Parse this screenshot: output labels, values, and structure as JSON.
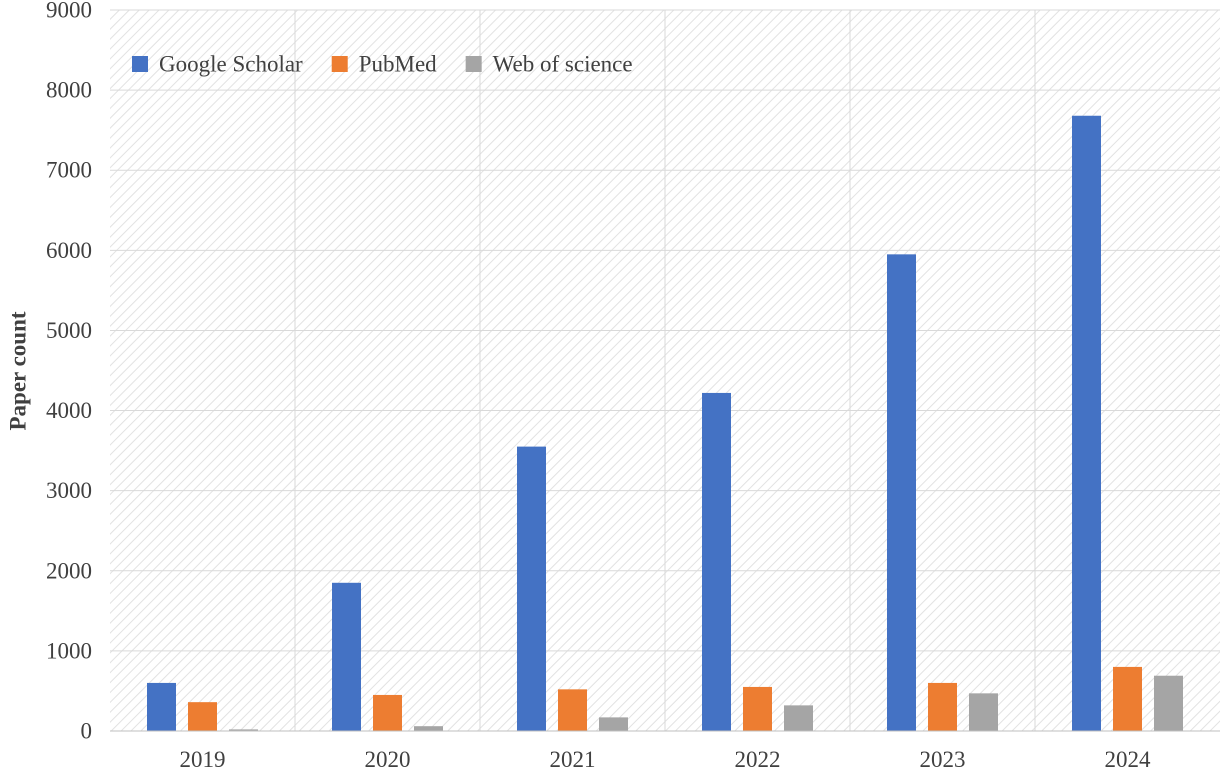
{
  "chart_data": {
    "type": "bar",
    "title": "",
    "xlabel": "",
    "ylabel": "Paper count",
    "categories": [
      "2019",
      "2020",
      "2021",
      "2022",
      "2023",
      "2024"
    ],
    "series": [
      {
        "name": "Google Scholar",
        "color": "#4472C4",
        "values": [
          600,
          1850,
          3550,
          4220,
          5950,
          7680
        ]
      },
      {
        "name": "PubMed",
        "color": "#ED7D31",
        "values": [
          360,
          450,
          520,
          550,
          600,
          800
        ]
      },
      {
        "name": "Web of science",
        "color": "#A5A5A5",
        "values": [
          20,
          60,
          170,
          320,
          470,
          690
        ]
      }
    ],
    "ylim": [
      0,
      9000
    ],
    "yticks": [
      "0",
      "1000",
      "2000",
      "3000",
      "4000",
      "5000",
      "6000",
      "7000",
      "8000",
      "9000"
    ],
    "grid": true,
    "legend_position": "top-left",
    "background": "hatched-light-gray"
  }
}
